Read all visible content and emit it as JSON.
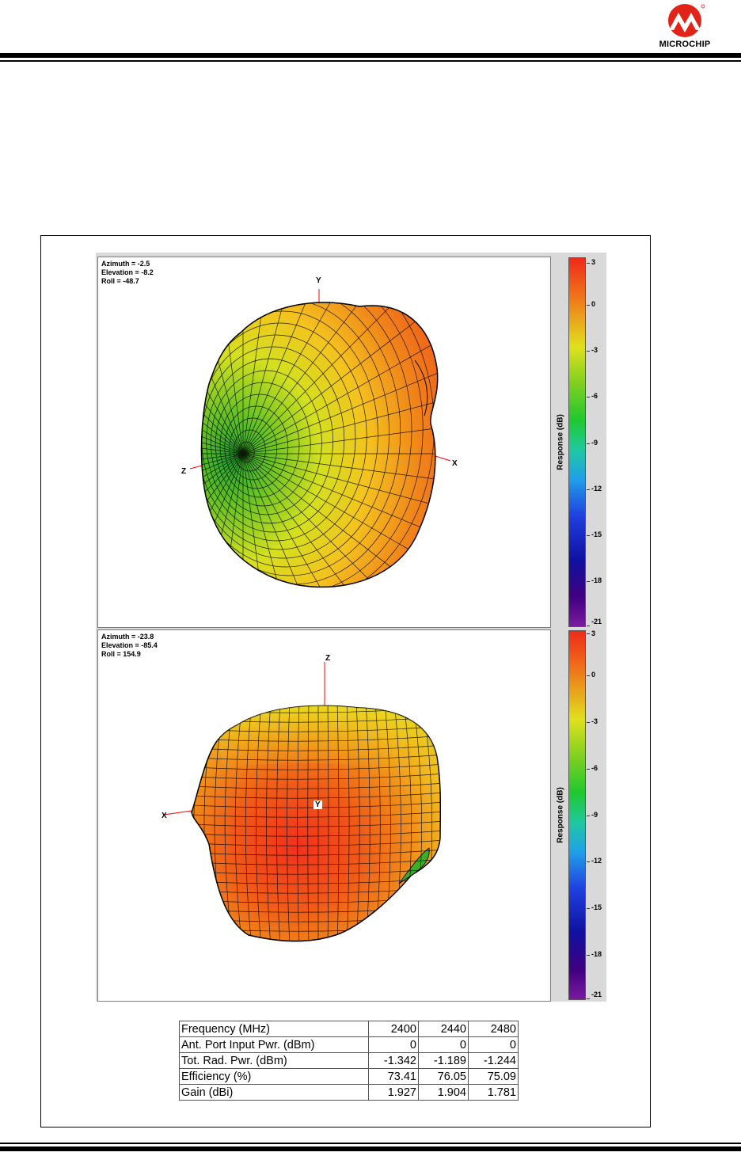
{
  "header": {
    "logo": {
      "icon": "microchip-logo-icon",
      "text": "MICROCHIP",
      "color": "#e2231a"
    }
  },
  "figure": {
    "top_plot": {
      "angles": [
        "Azimuth = -2.5",
        "Elevation = -8.2",
        "Roll = -48.7"
      ],
      "axes": {
        "up": "Y",
        "left": "Z",
        "right": "X"
      }
    },
    "bottom_plot": {
      "angles": [
        "Azimuth = -23.8",
        "Elevation = -85.4",
        "Roll = 154.9"
      ],
      "axes": {
        "up": "Z",
        "left": "X",
        "center": "Y"
      }
    },
    "colorbar": {
      "title": "Response  (dB)",
      "ticks": [
        "3",
        "0",
        "-3",
        "-6",
        "-9",
        "-12",
        "-15",
        "-18",
        "-21"
      ]
    }
  },
  "table": {
    "rows": [
      {
        "label": "Frequency   (MHz)",
        "values": [
          "2400",
          "2440",
          "2480"
        ]
      },
      {
        "label": "Ant. Port Input Pwr. (dBm)",
        "values": [
          "0",
          "0",
          "0"
        ]
      },
      {
        "label": "Tot. Rad. Pwr. (dBm)",
        "values": [
          "-1.342",
          "-1.189",
          "-1.244"
        ]
      },
      {
        "label": "Efficiency (%)",
        "values": [
          "73.41",
          "76.05",
          "75.09"
        ]
      },
      {
        "label": "Gain (dBi)",
        "values": [
          "1.927",
          "1.904",
          "1.781"
        ]
      }
    ]
  }
}
